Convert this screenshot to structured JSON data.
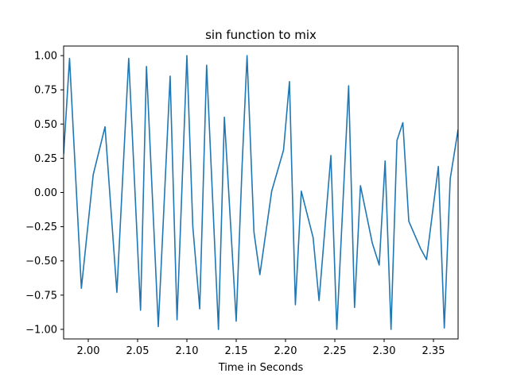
{
  "chart_data": {
    "type": "line",
    "title": "sin function to mix",
    "xlabel": "Time in Seconds",
    "ylabel": "",
    "xlim": [
      1.975,
      2.375
    ],
    "ylim": [
      -1.07,
      1.07
    ],
    "grid": false,
    "legend": "none",
    "x_ticks": [
      2.0,
      2.05,
      2.1,
      2.15,
      2.2,
      2.25,
      2.3,
      2.35
    ],
    "x_tick_labels": [
      "2.00",
      "2.05",
      "2.10",
      "2.15",
      "2.20",
      "2.25",
      "2.30",
      "2.35"
    ],
    "y_ticks": [
      1.0,
      0.75,
      0.5,
      0.25,
      0.0,
      -0.25,
      -0.5,
      -0.75,
      -1.0
    ],
    "y_tick_labels": [
      "1.00",
      "0.75",
      "0.50",
      "0.25",
      "0.00",
      "−0.25",
      "−0.50",
      "−0.75",
      "−1.00"
    ],
    "series": [
      {
        "color": "#1f77b4",
        "x": [
          1.975,
          1.981,
          1.993,
          2.005,
          2.017,
          2.029,
          2.041,
          2.053,
          2.059,
          2.071,
          2.083,
          2.09,
          2.1,
          2.106,
          2.113,
          2.12,
          2.132,
          2.138,
          2.15,
          2.156,
          2.161,
          2.168,
          2.174,
          2.186,
          2.198,
          2.204,
          2.21,
          2.216,
          2.228,
          2.234,
          2.246,
          2.252,
          2.264,
          2.27,
          2.276,
          2.288,
          2.295,
          2.301,
          2.307,
          2.313,
          2.319,
          2.325,
          2.337,
          2.343,
          2.355,
          2.361,
          2.367,
          2.375
        ],
        "y": [
          0.28,
          0.98,
          -0.7,
          0.13,
          0.48,
          -0.73,
          0.98,
          -0.86,
          0.92,
          -0.98,
          0.85,
          -0.93,
          1.0,
          -0.25,
          -0.85,
          0.93,
          -1.0,
          0.55,
          -0.94,
          0.2,
          1.0,
          -0.29,
          -0.6,
          0.01,
          0.31,
          0.81,
          -0.82,
          0.01,
          -0.33,
          -0.79,
          0.27,
          -1.0,
          0.78,
          -0.84,
          0.05,
          -0.37,
          -0.53,
          0.23,
          -1.0,
          0.38,
          0.51,
          -0.21,
          -0.41,
          -0.49,
          0.19,
          -0.99,
          0.1,
          0.46
        ]
      }
    ]
  }
}
